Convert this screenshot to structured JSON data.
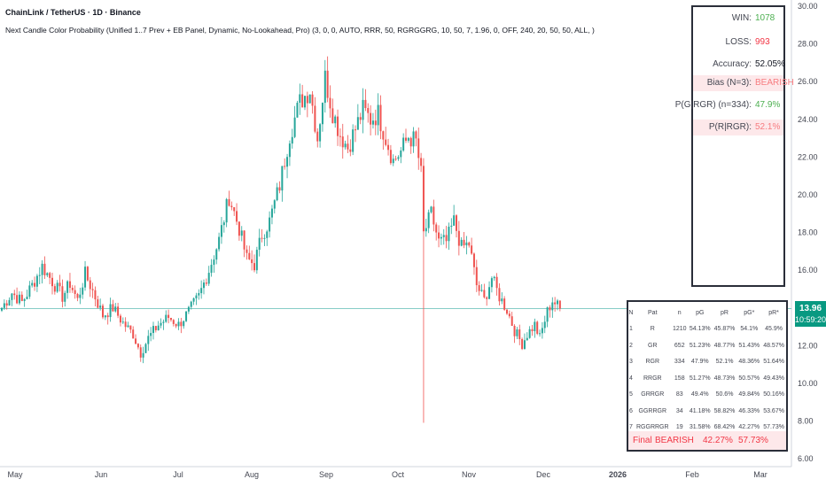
{
  "header": {
    "symbol_line": "ChainLink / TetherUS · 1D · Binance",
    "indicator_line": "Next Candle Color Probability (Unified 1..7 Prev + EB Panel, Dynamic, No-Lookahead, Pro) (3, 0, 0, AUTO, RRR, 50, RGRGGRG, 10, 50, 7, 1.96, 0, OFF, 240, 20, 50, 50, ALL, )"
  },
  "price_tag": {
    "price": "13.96",
    "countdown": "10:59:20",
    "color": "#089981"
  },
  "stats_panel": {
    "rows": [
      {
        "label": "WIN:",
        "value": "1078",
        "color": "#4caf50",
        "highlight": false
      },
      {
        "label": "LOSS:",
        "value": "993",
        "color": "#f23645",
        "highlight": false
      },
      {
        "label": "Accuracy:",
        "value": "52.05%",
        "color": "#131722",
        "highlight": false
      },
      {
        "label": "Bias (N=3):",
        "value": "BEARISH",
        "color": "#f77c80",
        "highlight": true
      },
      {
        "label": "P(G|RGR) (n=334):",
        "value": "47.9%",
        "color": "#4caf50",
        "highlight": false
      },
      {
        "label": "P(R|RGR):",
        "value": "52.1%",
        "color": "#f77c80",
        "highlight": true
      }
    ]
  },
  "pattern_table": {
    "headers": [
      "N",
      "Pat",
      "n",
      "pG",
      "pR",
      "pG*",
      "pR*"
    ],
    "rows": [
      [
        "1",
        "R",
        "1210",
        "54.13%",
        "45.87%",
        "54.1%",
        "45.9%"
      ],
      [
        "2",
        "GR",
        "652",
        "51.23%",
        "48.77%",
        "51.43%",
        "48.57%"
      ],
      [
        "3",
        "RGR",
        "334",
        "47.9%",
        "52.1%",
        "48.36%",
        "51.64%"
      ],
      [
        "4",
        "RRGR",
        "158",
        "51.27%",
        "48.73%",
        "50.57%",
        "49.43%"
      ],
      [
        "5",
        "GRRGR",
        "83",
        "49.4%",
        "50.6%",
        "49.84%",
        "50.16%"
      ],
      [
        "6",
        "GGRRGR",
        "34",
        "41.18%",
        "58.82%",
        "46.33%",
        "53.67%"
      ],
      [
        "7",
        "RGGRRGR",
        "19",
        "31.58%",
        "68.42%",
        "42.27%",
        "57.73%"
      ]
    ],
    "final": {
      "label": "Final",
      "bias": "BEARISH",
      "pg": "42.27%",
      "pr": "57.73%"
    }
  },
  "chart_data": {
    "type": "candlestick",
    "title": "ChainLink / TetherUS · 1D · Binance",
    "x_ticks": [
      "May",
      "Jun",
      "Jul",
      "Aug",
      "Sep",
      "Oct",
      "Nov",
      "Dec",
      "2026",
      "Feb",
      "Mar"
    ],
    "y_ticks": [
      "30.00",
      "28.00",
      "26.00",
      "24.00",
      "22.00",
      "20.00",
      "18.00",
      "16.00",
      "14.00",
      "12.00",
      "10.00",
      "8.00",
      "6.00"
    ],
    "ylim": [
      6,
      30
    ],
    "last_price": 13.96,
    "colors": {
      "up": "#26a69a",
      "down": "#ef5350",
      "price_line": "#26a69a"
    },
    "close_path": [
      [
        0,
        14.0
      ],
      [
        4,
        14.8
      ],
      [
        8,
        14.3
      ],
      [
        12,
        15.2
      ],
      [
        16,
        16.2
      ],
      [
        20,
        15.4
      ],
      [
        24,
        14.6
      ],
      [
        27,
        15.3
      ],
      [
        30,
        14.4
      ],
      [
        33,
        15.8
      ],
      [
        36,
        14.9
      ],
      [
        40,
        13.6
      ],
      [
        44,
        14.0
      ],
      [
        48,
        13.2
      ],
      [
        52,
        12.6
      ],
      [
        55,
        11.6
      ],
      [
        58,
        12.4
      ],
      [
        62,
        13.1
      ],
      [
        66,
        13.5
      ],
      [
        70,
        13.1
      ],
      [
        74,
        13.8
      ],
      [
        78,
        14.6
      ],
      [
        82,
        16.0
      ],
      [
        86,
        17.6
      ],
      [
        90,
        19.9
      ],
      [
        94,
        18.2
      ],
      [
        97,
        16.6
      ],
      [
        100,
        16.3
      ],
      [
        103,
        17.9
      ],
      [
        106,
        18.6
      ],
      [
        110,
        20.5
      ],
      [
        114,
        23.2
      ],
      [
        118,
        24.9
      ],
      [
        122,
        25.6
      ],
      [
        125,
        23.0
      ],
      [
        128,
        26.2
      ],
      [
        131,
        24.4
      ],
      [
        134,
        23.2
      ],
      [
        137,
        22.5
      ],
      [
        140,
        23.5
      ],
      [
        143,
        24.5
      ],
      [
        146,
        24.0
      ],
      [
        149,
        24.3
      ],
      [
        152,
        23.0
      ],
      [
        155,
        21.8
      ],
      [
        158,
        22.3
      ],
      [
        161,
        23.1
      ],
      [
        164,
        22.8
      ],
      [
        166,
        21.1
      ],
      [
        167,
        17.9
      ],
      [
        170,
        19.0
      ],
      [
        173,
        17.5
      ],
      [
        176,
        17.5
      ],
      [
        179,
        18.6
      ],
      [
        182,
        17.2
      ],
      [
        185,
        17.4
      ],
      [
        188,
        15.2
      ],
      [
        191,
        14.4
      ],
      [
        194,
        15.6
      ],
      [
        197,
        14.6
      ],
      [
        200,
        13.9
      ],
      [
        203,
        12.8
      ],
      [
        206,
        12.1
      ],
      [
        208,
        12.6
      ],
      [
        211,
        13.1
      ],
      [
        213,
        12.4
      ],
      [
        216,
        13.8
      ],
      [
        218,
        14.4
      ],
      [
        221,
        13.96
      ]
    ],
    "candle_count": 222
  }
}
